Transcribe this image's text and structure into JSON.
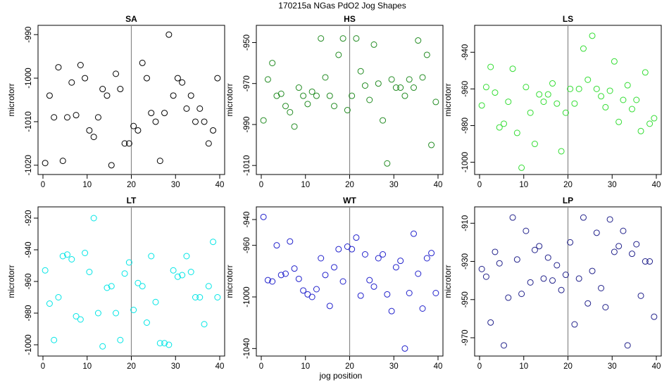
{
  "figure": {
    "title": "170215a   NGas PdO2 Jog Shapes",
    "xlabel": "jog position"
  },
  "chart_data": [
    {
      "type": "scatter",
      "title": "SA",
      "xlabel": "",
      "ylabel": "microtorr",
      "xlim": [
        0,
        40
      ],
      "ylim": [
        -1021,
        -989
      ],
      "xticks": [
        0,
        10,
        20,
        30,
        40
      ],
      "yticks": [
        -1020,
        -1010,
        -1000,
        -990
      ],
      "vline": 20,
      "color": "#000000",
      "points": [
        [
          0.5,
          -1019.5
        ],
        [
          1.5,
          -1004
        ],
        [
          2.5,
          -1009
        ],
        [
          3.5,
          -997.5
        ],
        [
          4.5,
          -1019
        ],
        [
          5.5,
          -1009
        ],
        [
          6.5,
          -1001
        ],
        [
          7.5,
          -1008.5
        ],
        [
          8.5,
          -997
        ],
        [
          9.5,
          -1000
        ],
        [
          10.5,
          -1012
        ],
        [
          11.5,
          -1013.5
        ],
        [
          12.5,
          -1009
        ],
        [
          13.5,
          -1002.5
        ],
        [
          14.5,
          -1004
        ],
        [
          15.5,
          -1020
        ],
        [
          16.5,
          -999
        ],
        [
          17.5,
          -1002.5
        ],
        [
          18.5,
          -1015
        ],
        [
          19.5,
          -1015
        ],
        [
          20.5,
          -1011
        ],
        [
          21.5,
          -1012
        ],
        [
          22.5,
          -996.5
        ],
        [
          23.5,
          -1000
        ],
        [
          24.5,
          -1008
        ],
        [
          25.5,
          -1010
        ],
        [
          26.5,
          -1019
        ],
        [
          27.5,
          -1008
        ],
        [
          28.5,
          -990
        ],
        [
          29.5,
          -1004
        ],
        [
          30.5,
          -1000
        ],
        [
          31.5,
          -1001
        ],
        [
          32.5,
          -1007
        ],
        [
          33.5,
          -1004
        ],
        [
          34.5,
          -1010
        ],
        [
          35.5,
          -1007
        ],
        [
          36.5,
          -1010
        ],
        [
          37.5,
          -1015
        ],
        [
          38.5,
          -1012
        ],
        [
          39.5,
          -1000
        ]
      ]
    },
    {
      "type": "scatter",
      "title": "HS",
      "xlabel": "",
      "ylabel": "microtorr",
      "xlim": [
        0,
        40
      ],
      "ylim": [
        -1012,
        -944
      ],
      "xticks": [
        0,
        10,
        20,
        30,
        40
      ],
      "yticks": [
        -1010,
        -990,
        -970,
        -950
      ],
      "vline": 20,
      "color": "#228B22",
      "points": [
        [
          0.5,
          -988
        ],
        [
          1.5,
          -968
        ],
        [
          2.5,
          -960
        ],
        [
          3.5,
          -976
        ],
        [
          4.5,
          -975
        ],
        [
          5.5,
          -981
        ],
        [
          6.5,
          -984
        ],
        [
          7.5,
          -991
        ],
        [
          8.5,
          -972
        ],
        [
          9.5,
          -976
        ],
        [
          10.5,
          -980
        ],
        [
          11.5,
          -974
        ],
        [
          12.5,
          -976
        ],
        [
          13.5,
          -948
        ],
        [
          14.5,
          -967
        ],
        [
          15.5,
          -976
        ],
        [
          16.5,
          -981
        ],
        [
          17.5,
          -956
        ],
        [
          18.5,
          -948
        ],
        [
          19.5,
          -983
        ],
        [
          20.5,
          -976
        ],
        [
          21.5,
          -948
        ],
        [
          22.5,
          -964
        ],
        [
          23.5,
          -971
        ],
        [
          24.5,
          -978
        ],
        [
          25.5,
          -951
        ],
        [
          26.5,
          -970
        ],
        [
          27.5,
          -988
        ],
        [
          28.5,
          -1009
        ],
        [
          29.5,
          -968
        ],
        [
          30.5,
          -972
        ],
        [
          31.5,
          -972
        ],
        [
          32.5,
          -976
        ],
        [
          33.5,
          -968
        ],
        [
          34.5,
          -972
        ],
        [
          35.5,
          -949
        ],
        [
          36.5,
          -967
        ],
        [
          37.5,
          -956
        ],
        [
          38.5,
          -1000
        ],
        [
          39.5,
          -979
        ]
      ]
    },
    {
      "type": "scatter",
      "title": "LS",
      "xlabel": "",
      "ylabel": "microtorr",
      "xlim": [
        0,
        40
      ],
      "ylim": [
        -1004,
        -928
      ],
      "xticks": [
        0,
        10,
        20,
        30,
        40
      ],
      "yticks": [
        -1000,
        -980,
        -960,
        -940
      ],
      "vline": 20,
      "color": "#33DD33",
      "points": [
        [
          0.5,
          -969
        ],
        [
          1.5,
          -959
        ],
        [
          2.5,
          -948
        ],
        [
          3.5,
          -962
        ],
        [
          4.5,
          -981
        ],
        [
          5.5,
          -979
        ],
        [
          6.5,
          -967
        ],
        [
          7.5,
          -949
        ],
        [
          8.5,
          -984
        ],
        [
          9.5,
          -1003
        ],
        [
          10.5,
          -959
        ],
        [
          11.5,
          -973
        ],
        [
          12.5,
          -990
        ],
        [
          13.5,
          -963
        ],
        [
          14.5,
          -967
        ],
        [
          15.5,
          -963
        ],
        [
          16.5,
          -957
        ],
        [
          17.5,
          -968
        ],
        [
          18.5,
          -994
        ],
        [
          19.5,
          -973
        ],
        [
          20.5,
          -960
        ],
        [
          21.5,
          -968
        ],
        [
          22.5,
          -960
        ],
        [
          23.5,
          -938
        ],
        [
          24.5,
          -955
        ],
        [
          25.5,
          -931
        ],
        [
          26.5,
          -960
        ],
        [
          27.5,
          -964
        ],
        [
          28.5,
          -970
        ],
        [
          29.5,
          -961
        ],
        [
          30.5,
          -945
        ],
        [
          31.5,
          -978
        ],
        [
          32.5,
          -966
        ],
        [
          33.5,
          -958
        ],
        [
          34.5,
          -971
        ],
        [
          35.5,
          -966
        ],
        [
          36.5,
          -983
        ],
        [
          37.5,
          -951
        ],
        [
          38.5,
          -979
        ],
        [
          39.5,
          -976
        ]
      ]
    },
    {
      "type": "scatter",
      "title": "LT",
      "xlabel": "",
      "ylabel": "microtorr",
      "xlim": [
        0,
        40
      ],
      "ylim": [
        -1004,
        -916
      ],
      "xticks": [
        0,
        10,
        20,
        30,
        40
      ],
      "yticks": [
        -1000,
        -980,
        -960,
        -940,
        -920
      ],
      "vline": 20,
      "color": "#00E5E5",
      "points": [
        [
          0.5,
          -953
        ],
        [
          1.5,
          -974
        ],
        [
          2.5,
          -997
        ],
        [
          3.5,
          -970
        ],
        [
          4.5,
          -944
        ],
        [
          5.5,
          -943
        ],
        [
          6.5,
          -946
        ],
        [
          7.5,
          -982
        ],
        [
          8.5,
          -984
        ],
        [
          9.5,
          -942
        ],
        [
          10.5,
          -954
        ],
        [
          11.5,
          -920
        ],
        [
          12.5,
          -980
        ],
        [
          13.5,
          -1001
        ],
        [
          14.5,
          -964
        ],
        [
          15.5,
          -963
        ],
        [
          16.5,
          -980
        ],
        [
          17.5,
          -997
        ],
        [
          18.5,
          -955
        ],
        [
          19.5,
          -948
        ],
        [
          20.5,
          -978
        ],
        [
          21.5,
          -961
        ],
        [
          22.5,
          -963
        ],
        [
          23.5,
          -986
        ],
        [
          24.5,
          -944
        ],
        [
          25.5,
          -973
        ],
        [
          26.5,
          -999
        ],
        [
          27.5,
          -999
        ],
        [
          28.5,
          -1000
        ],
        [
          29.5,
          -953
        ],
        [
          30.5,
          -957
        ],
        [
          31.5,
          -956
        ],
        [
          32.5,
          -944
        ],
        [
          33.5,
          -954
        ],
        [
          34.5,
          -970
        ],
        [
          35.5,
          -970
        ],
        [
          36.5,
          -987
        ],
        [
          37.5,
          -963
        ],
        [
          38.5,
          -935
        ],
        [
          39.5,
          -970
        ]
      ]
    },
    {
      "type": "scatter",
      "title": "WT",
      "xlabel": "",
      "ylabel": "microtorr",
      "xlim": [
        0,
        40
      ],
      "ylim": [
        -1042,
        -934
      ],
      "xticks": [
        0,
        10,
        20,
        30,
        40
      ],
      "yticks": [
        -1040,
        -1000,
        -960,
        -940
      ],
      "vline": 20,
      "color": "#2222CC",
      "points": [
        [
          0.5,
          -938
        ],
        [
          1.5,
          -987
        ],
        [
          2.5,
          -988
        ],
        [
          3.5,
          -960
        ],
        [
          4.5,
          -983
        ],
        [
          5.5,
          -982
        ],
        [
          6.5,
          -957
        ],
        [
          7.5,
          -978
        ],
        [
          8.5,
          -986
        ],
        [
          9.5,
          -995
        ],
        [
          10.5,
          -998
        ],
        [
          11.5,
          -1000
        ],
        [
          12.5,
          -994
        ],
        [
          13.5,
          -970
        ],
        [
          14.5,
          -983
        ],
        [
          15.5,
          -1007
        ],
        [
          16.5,
          -977
        ],
        [
          17.5,
          -963
        ],
        [
          18.5,
          -988
        ],
        [
          19.5,
          -961
        ],
        [
          20.5,
          -963
        ],
        [
          21.5,
          -954
        ],
        [
          22.5,
          -999
        ],
        [
          23.5,
          -967
        ],
        [
          24.5,
          -987
        ],
        [
          25.5,
          -992
        ],
        [
          26.5,
          -970
        ],
        [
          27.5,
          -967
        ],
        [
          28.5,
          -998
        ],
        [
          29.5,
          -1011
        ],
        [
          30.5,
          -977
        ],
        [
          31.5,
          -972
        ],
        [
          32.5,
          -1040
        ],
        [
          33.5,
          -997
        ],
        [
          34.5,
          -951
        ],
        [
          35.5,
          -982
        ],
        [
          36.5,
          -1009
        ],
        [
          37.5,
          -970
        ],
        [
          38.5,
          -966
        ],
        [
          39.5,
          -997
        ]
      ]
    },
    {
      "type": "scatter",
      "title": "LP",
      "xlabel": "",
      "ylabel": "microtorr",
      "xlim": [
        0,
        40
      ],
      "ylim": [
        -977,
        -904
      ],
      "xticks": [
        0,
        10,
        20,
        30,
        40
      ],
      "yticks": [
        -970,
        -950,
        -930,
        -910
      ],
      "vline": 20,
      "color": "#22228B",
      "points": [
        [
          0.5,
          -934
        ],
        [
          1.5,
          -938
        ],
        [
          2.5,
          -962
        ],
        [
          3.5,
          -925
        ],
        [
          4.5,
          -931
        ],
        [
          5.5,
          -974
        ],
        [
          6.5,
          -949
        ],
        [
          7.5,
          -907
        ],
        [
          8.5,
          -929
        ],
        [
          9.5,
          -947
        ],
        [
          10.5,
          -914
        ],
        [
          11.5,
          -941
        ],
        [
          12.5,
          -924
        ],
        [
          13.5,
          -922
        ],
        [
          14.5,
          -939
        ],
        [
          15.5,
          -928
        ],
        [
          16.5,
          -940
        ],
        [
          17.5,
          -932
        ],
        [
          18.5,
          -945
        ],
        [
          19.5,
          -937
        ],
        [
          20.5,
          -920
        ],
        [
          21.5,
          -963
        ],
        [
          22.5,
          -939
        ],
        [
          23.5,
          -907
        ],
        [
          24.5,
          -952
        ],
        [
          25.5,
          -935
        ],
        [
          26.5,
          -915
        ],
        [
          27.5,
          -944
        ],
        [
          28.5,
          -954
        ],
        [
          29.5,
          -908
        ],
        [
          30.5,
          -925
        ],
        [
          31.5,
          -922
        ],
        [
          32.5,
          -914
        ],
        [
          33.5,
          -974
        ],
        [
          34.5,
          -926
        ],
        [
          35.5,
          -921
        ],
        [
          36.5,
          -948
        ],
        [
          37.5,
          -930
        ],
        [
          38.5,
          -930
        ],
        [
          39.5,
          -959
        ]
      ]
    }
  ]
}
